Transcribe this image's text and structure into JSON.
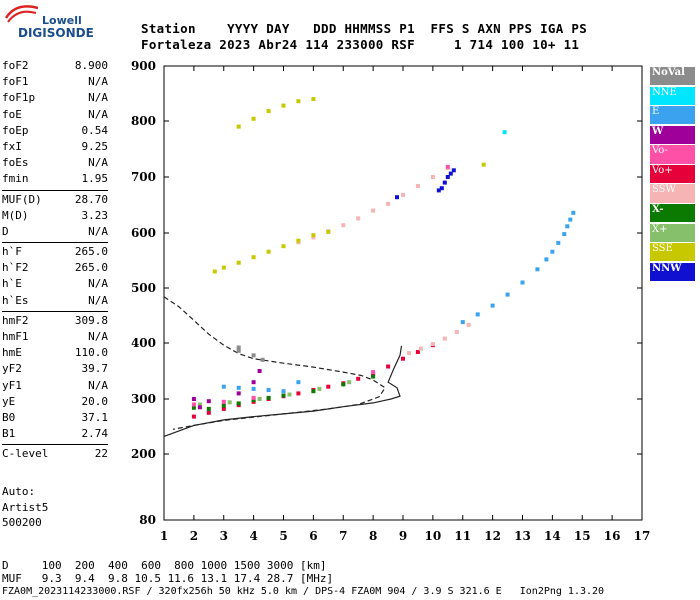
{
  "logo": {
    "brand": "Lowell",
    "product": "DIGISONDE"
  },
  "header": {
    "row1": "Station    YYYY DAY   DDD HHMMSS P1  FFS S AXN PPS IGA PS",
    "row2": "Fortaleza 2023 Abr24 114 233000 RSF     1 714 100 10+ 11"
  },
  "params": {
    "group1": [
      {
        "label": "foF2",
        "value": "8.900"
      },
      {
        "label": "foF1",
        "value": "N/A"
      },
      {
        "label": "foF1p",
        "value": "N/A"
      },
      {
        "label": "foE",
        "value": "N/A"
      },
      {
        "label": "foEp",
        "value": "0.54"
      },
      {
        "label": "fxI",
        "value": "9.25"
      },
      {
        "label": "foEs",
        "value": "N/A"
      },
      {
        "label": "fmin",
        "value": "1.95"
      }
    ],
    "group2": [
      {
        "label": "MUF(D)",
        "value": "28.70"
      },
      {
        "label": "M(D)",
        "value": "3.23"
      },
      {
        "label": "D",
        "value": "N/A"
      }
    ],
    "group3": [
      {
        "label": "h`F",
        "value": "265.0"
      },
      {
        "label": "h`F2",
        "value": "265.0"
      },
      {
        "label": "h`E",
        "value": "N/A"
      },
      {
        "label": "h`Es",
        "value": "N/A"
      }
    ],
    "group4": [
      {
        "label": "hmF2",
        "value": "309.8"
      },
      {
        "label": "hmF1",
        "value": "N/A"
      },
      {
        "label": "hmE",
        "value": "110.0"
      },
      {
        "label": "yF2",
        "value": "39.7"
      },
      {
        "label": "yF1",
        "value": "N/A"
      },
      {
        "label": "yE",
        "value": "20.0"
      },
      {
        "label": "B0",
        "value": "37.1"
      },
      {
        "label": "B1",
        "value": "2.74"
      }
    ],
    "group5": [
      {
        "label": "C-level",
        "value": "22"
      }
    ]
  },
  "auto": {
    "line1": "Auto:",
    "line2": "Artist5",
    "line3": "500200"
  },
  "legend": [
    {
      "label": "NoVal",
      "color": "#8c8c8c",
      "text_color": "#ffffff",
      "bold": true
    },
    {
      "label": "NNE",
      "color": "#00e6ff",
      "text_color": "#ffffff",
      "bold": false
    },
    {
      "label": "E",
      "color": "#3aa2ef",
      "text_color": "#ffffff",
      "bold": false
    },
    {
      "label": "W",
      "color": "#a0009a",
      "text_color": "#ffffff",
      "bold": true
    },
    {
      "label": "Vo-",
      "color": "#ff50a8",
      "text_color": "#ffffff",
      "bold": false
    },
    {
      "label": "Vo+",
      "color": "#e6003a",
      "text_color": "#ffffff",
      "bold": false
    },
    {
      "label": "SSW",
      "color": "#f6b4b4",
      "text_color": "#ffffff",
      "bold": false
    },
    {
      "label": "X-",
      "color": "#0a7a00",
      "text_color": "#ffffff",
      "bold": true
    },
    {
      "label": "X+",
      "color": "#86c06a",
      "text_color": "#ffffff",
      "bold": false
    },
    {
      "label": "SSE",
      "color": "#c8c800",
      "text_color": "#ffffff",
      "bold": false
    },
    {
      "label": "NNW",
      "color": "#1010d0",
      "text_color": "#ffffff",
      "bold": true
    }
  ],
  "chart_data": {
    "type": "scatter",
    "xlim": [
      1,
      17
    ],
    "ylim": [
      80,
      900
    ],
    "x_ticks": [
      "1",
      "2",
      "3",
      "4",
      "5",
      "6",
      "7",
      "8",
      "9",
      "10",
      "11",
      "12",
      "13",
      "14",
      "15",
      "16",
      "17"
    ],
    "y_ticks": [
      "80",
      "200",
      "300",
      "400",
      "500",
      "600",
      "700",
      "800",
      "900"
    ],
    "grid": false,
    "series": [
      {
        "name": "Vo+",
        "color": "#e6003a",
        "points": [
          [
            2.0,
            268
          ],
          [
            2.5,
            275
          ],
          [
            3.0,
            282
          ],
          [
            3.5,
            289
          ],
          [
            4.0,
            295
          ],
          [
            4.5,
            300
          ],
          [
            5.0,
            305
          ],
          [
            5.5,
            310
          ],
          [
            6.0,
            316
          ],
          [
            6.5,
            322
          ],
          [
            7.0,
            328
          ],
          [
            7.5,
            336
          ],
          [
            8.0,
            344
          ],
          [
            8.5,
            358
          ],
          [
            9.0,
            372
          ],
          [
            9.5,
            384
          ],
          [
            10.0,
            396
          ]
        ]
      },
      {
        "name": "SSW",
        "color": "#f6b4b4",
        "points": [
          [
            9.2,
            382
          ],
          [
            9.6,
            390
          ],
          [
            10.0,
            398
          ],
          [
            10.4,
            408
          ],
          [
            10.8,
            420
          ],
          [
            11.2,
            433
          ],
          [
            5.5,
            583
          ],
          [
            6.0,
            592
          ],
          [
            6.5,
            603
          ],
          [
            7.0,
            614
          ],
          [
            7.5,
            626
          ],
          [
            8.0,
            640
          ],
          [
            8.5,
            652
          ],
          [
            9.0,
            668
          ],
          [
            9.5,
            684
          ],
          [
            10.0,
            700
          ],
          [
            10.5,
            716
          ]
        ]
      },
      {
        "name": "E",
        "color": "#3aa2ef",
        "points": [
          [
            11.0,
            438
          ],
          [
            11.5,
            452
          ],
          [
            12.0,
            468
          ],
          [
            12.5,
            488
          ],
          [
            13.0,
            510
          ],
          [
            13.5,
            534
          ],
          [
            13.8,
            552
          ],
          [
            14.0,
            566
          ],
          [
            14.2,
            582
          ],
          [
            14.4,
            598
          ],
          [
            14.5,
            612
          ],
          [
            14.6,
            624
          ],
          [
            14.7,
            636
          ],
          [
            3.0,
            322
          ],
          [
            3.5,
            320
          ],
          [
            4.0,
            318
          ],
          [
            4.5,
            316
          ],
          [
            5.0,
            314
          ],
          [
            5.5,
            330
          ]
        ]
      },
      {
        "name": "SSE",
        "color": "#c8c800",
        "points": [
          [
            2.7,
            530
          ],
          [
            3.0,
            537
          ],
          [
            3.5,
            546
          ],
          [
            4.0,
            556
          ],
          [
            4.5,
            566
          ],
          [
            5.0,
            576
          ],
          [
            5.5,
            586
          ],
          [
            6.0,
            596
          ],
          [
            6.5,
            602
          ],
          [
            3.5,
            790
          ],
          [
            4.0,
            804
          ],
          [
            4.5,
            818
          ],
          [
            5.0,
            828
          ],
          [
            5.5,
            836
          ],
          [
            6.0,
            840
          ],
          [
            11.7,
            722
          ]
        ]
      },
      {
        "name": "NNW",
        "color": "#1010d0",
        "points": [
          [
            10.3,
            680
          ],
          [
            10.4,
            690
          ],
          [
            10.5,
            700
          ],
          [
            10.6,
            706
          ],
          [
            10.7,
            712
          ],
          [
            10.2,
            676
          ],
          [
            8.8,
            664
          ]
        ]
      },
      {
        "name": "X-",
        "color": "#0a7a00",
        "points": [
          [
            2.0,
            284
          ],
          [
            2.5,
            282
          ],
          [
            3.0,
            288
          ],
          [
            3.5,
            292
          ],
          [
            4.0,
            298
          ],
          [
            4.5,
            302
          ],
          [
            5.0,
            306
          ],
          [
            6.0,
            314
          ],
          [
            7.0,
            326
          ],
          [
            8.0,
            340
          ]
        ]
      },
      {
        "name": "X+",
        "color": "#86c06a",
        "points": [
          [
            2.2,
            290
          ],
          [
            3.2,
            294
          ],
          [
            4.2,
            300
          ],
          [
            5.2,
            308
          ],
          [
            6.2,
            318
          ],
          [
            7.2,
            330
          ]
        ]
      },
      {
        "name": "W",
        "color": "#a0009a",
        "points": [
          [
            2.0,
            300
          ],
          [
            2.5,
            296
          ],
          [
            3.5,
            310
          ],
          [
            4.0,
            330
          ],
          [
            4.2,
            350
          ],
          [
            2.2,
            285
          ]
        ]
      },
      {
        "name": "Vo-",
        "color": "#ff50a8",
        "points": [
          [
            2.0,
            290
          ],
          [
            3.0,
            295
          ],
          [
            4.0,
            302
          ],
          [
            10.5,
            718
          ],
          [
            8.0,
            348
          ]
        ]
      },
      {
        "name": "NNE",
        "color": "#00e6ff",
        "points": [
          [
            12.4,
            780
          ]
        ]
      },
      {
        "name": "NoVal",
        "color": "#8c8c8c",
        "points": [
          [
            3.5,
            386
          ],
          [
            3.5,
            392
          ],
          [
            4.0,
            378
          ],
          [
            4.3,
            370
          ]
        ]
      }
    ],
    "profile_solid": [
      [
        1.0,
        232
      ],
      [
        2.0,
        252
      ],
      [
        3.0,
        262
      ],
      [
        4.0,
        268
      ],
      [
        5.0,
        273
      ],
      [
        6.0,
        278
      ],
      [
        7.0,
        286
      ],
      [
        8.0,
        293
      ],
      [
        8.6,
        300
      ],
      [
        8.9,
        305
      ],
      [
        8.8,
        320
      ],
      [
        8.5,
        330
      ],
      [
        8.7,
        355
      ],
      [
        8.9,
        378
      ],
      [
        8.95,
        395
      ]
    ],
    "profile_dashed": [
      [
        1.0,
        484
      ],
      [
        1.5,
        466
      ],
      [
        2.0,
        441
      ],
      [
        2.5,
        416
      ],
      [
        3.0,
        396
      ],
      [
        3.5,
        381
      ],
      [
        4.0,
        372
      ],
      [
        5.0,
        364
      ],
      [
        6.0,
        357
      ],
      [
        7.0,
        348
      ],
      [
        7.6,
        342
      ],
      [
        8.0,
        334
      ],
      [
        8.4,
        320
      ],
      [
        8.2,
        304
      ],
      [
        7.5,
        290
      ],
      [
        6.5,
        282
      ],
      [
        5.0,
        273
      ],
      [
        4.0,
        267
      ],
      [
        3.0,
        261
      ],
      [
        2.0,
        252
      ],
      [
        1.3,
        245
      ]
    ]
  },
  "bottom": {
    "row1": "D     100  200  400  600  800 1000 1500 3000 [km]",
    "row2": "MUF   9.3  9.4  9.8 10.5 11.6 13.1 17.4 28.7 [MHz]",
    "row3": "FZA0M_2023114233000.RSF / 320fx256h 50 kHz 5.0 km / DPS-4 FZA0M 904 / 3.9 S 321.6 E   Ion2Png 1.3.20"
  }
}
